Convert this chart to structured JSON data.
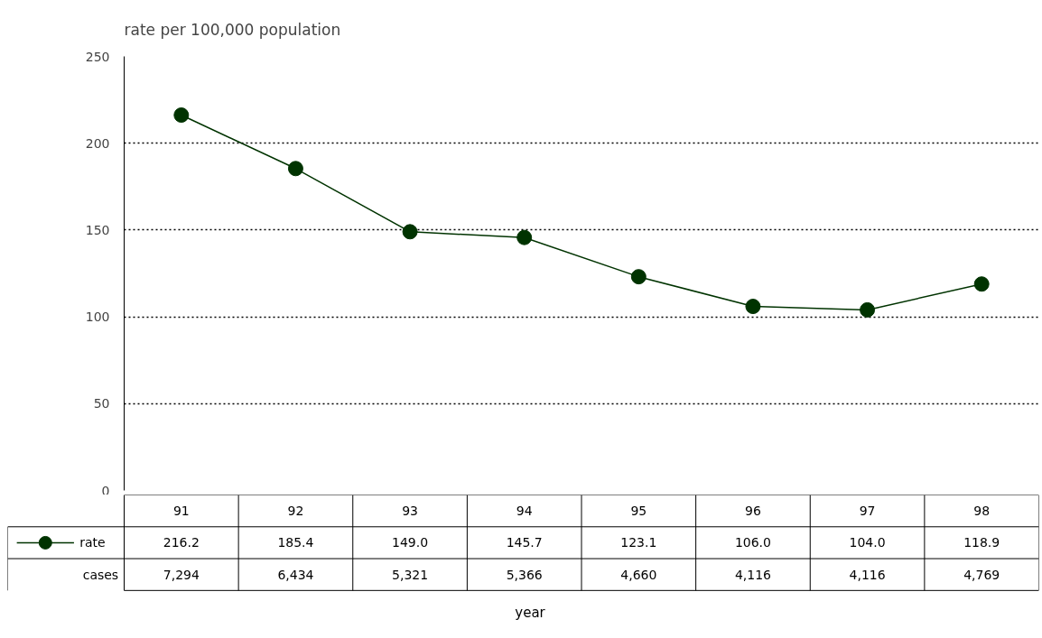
{
  "chart_data": {
    "type": "line",
    "title": "rate per 100,000 population",
    "categories": [
      "91",
      "92",
      "93",
      "94",
      "95",
      "96",
      "97",
      "98"
    ],
    "series": [
      {
        "name": "rate",
        "color": "#003300",
        "values": [
          216.2,
          185.4,
          149.0,
          145.7,
          123.1,
          106.0,
          104.0,
          118.9
        ],
        "value_labels": [
          "216.2",
          "185.4",
          "149.0",
          "145.7",
          "123.1",
          "106.0",
          "104.0",
          "118.9"
        ]
      }
    ],
    "ylim": [
      0,
      250
    ],
    "yticks": [
      0,
      50,
      100,
      150,
      200,
      250
    ],
    "grid": "y",
    "marker": "circle",
    "line_style": "solid",
    "legend": "bottom left",
    "annotations": [
      "cases",
      "7,294",
      "6,434",
      "5,321",
      "5,366",
      "4,660",
      "4,116",
      "4,116",
      "4,769",
      "year"
    ]
  }
}
